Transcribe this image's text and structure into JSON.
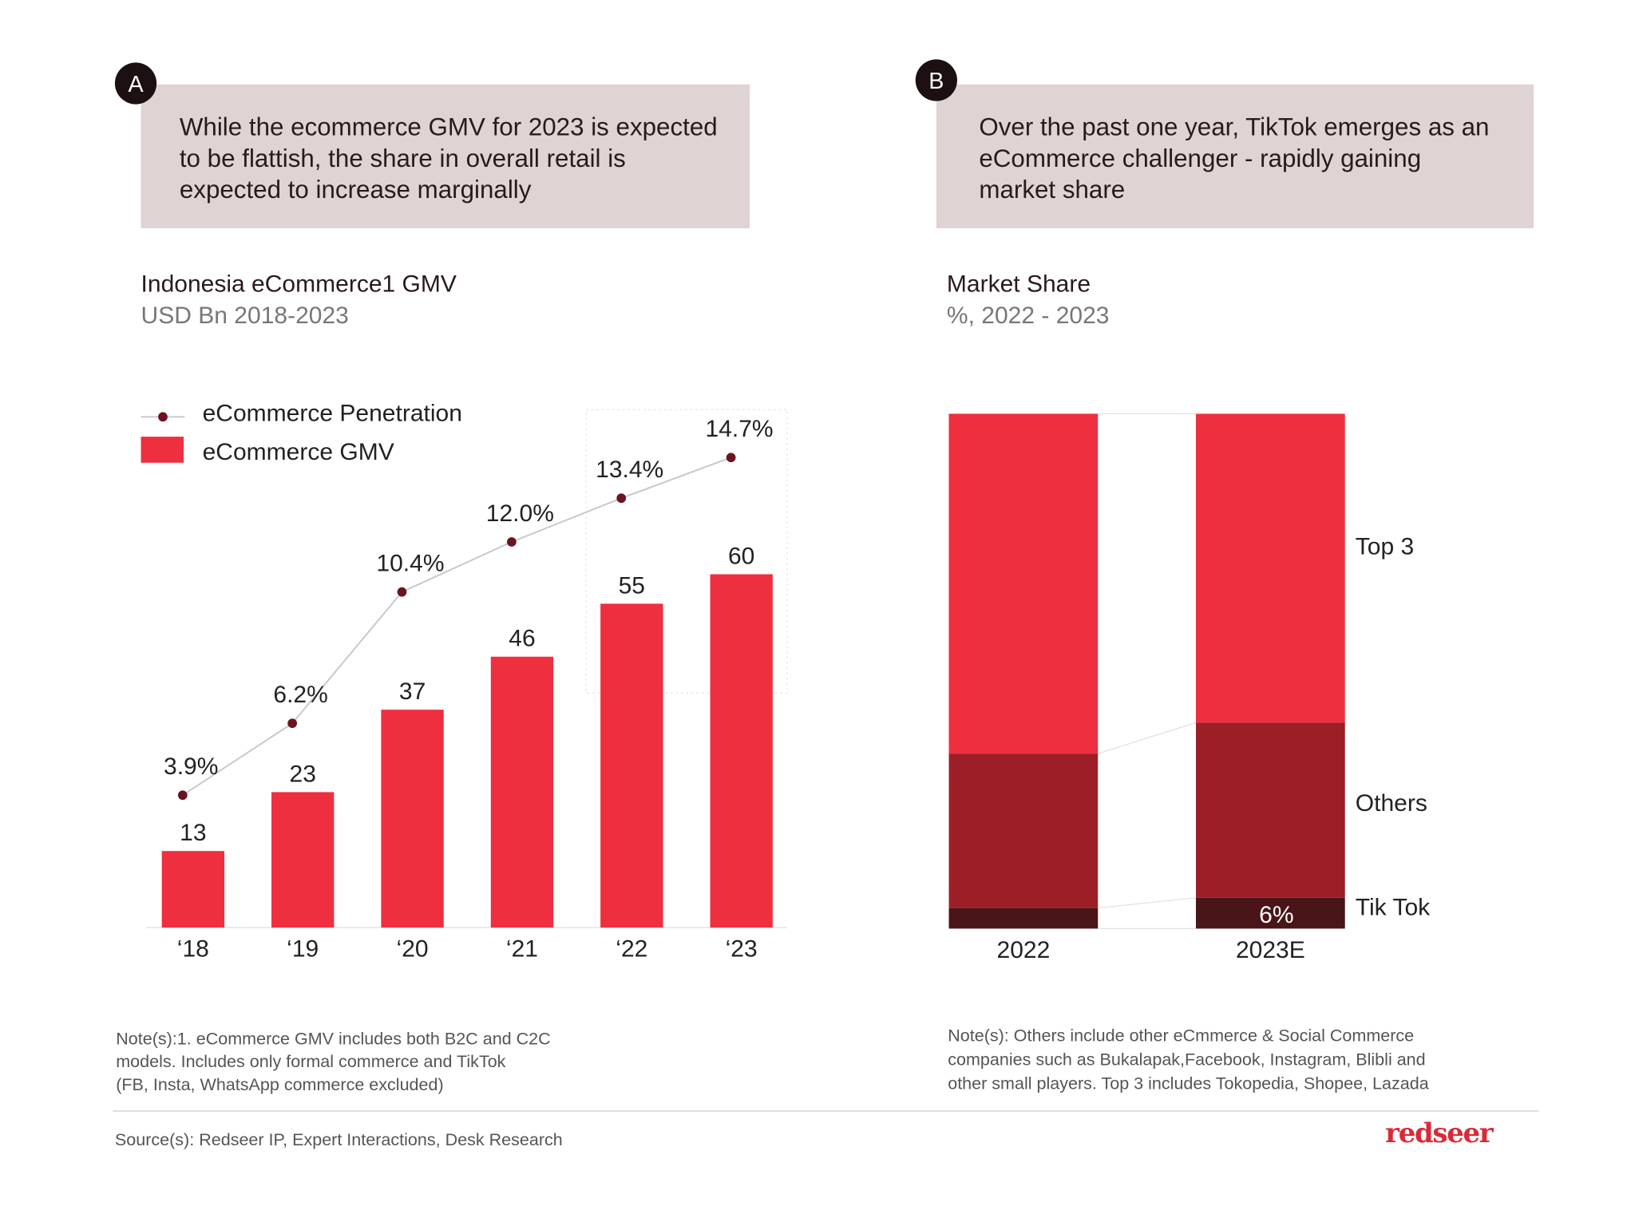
{
  "panel_a": {
    "badge": "A",
    "headline": [
      "While the ecommerce GMV for 2023 is expected",
      "to be flattish, the share in overall retail is",
      "expected to increase marginally"
    ],
    "note": [
      "Note(s):1. eCommerce GMV includes both B2C and C2C",
      "models. Includes only formal commerce and TikTok",
      "(FB, Insta, WhatsApp commerce excluded)"
    ]
  },
  "panel_b": {
    "badge": "B",
    "headline": [
      "Over the past one year, TikTok emerges as an",
      "eCommerce challenger  - rapidly gaining",
      "market share"
    ],
    "note": [
      "Note(s): Others include other eCmmerce & Social Commerce",
      "companies such as Bukalapak,Facebook, Instagram, Blibli and",
      "other small players. Top 3 includes Tokopedia, Shopee, Lazada"
    ]
  },
  "footer": {
    "source": "Source(s): Redseer IP, Expert Interactions, Desk Research",
    "logo": "redseer"
  },
  "colors": {
    "bar": "#ee2f3f",
    "others": "#9c1f28",
    "tiktok": "#4a1518",
    "line": "#c8c8c8",
    "dot": "#6b1420",
    "headline_bg": "#e0d3d4",
    "logo": "#d92a36"
  },
  "chart_data": [
    {
      "type": "bar",
      "title": "Indonesia eCommerce1 GMV",
      "subtitle": "USD Bn 2018-2023",
      "categories": [
        "'18",
        "'19",
        "'20",
        "'21",
        "'22",
        "'23"
      ],
      "category_labels": [
        "‘18",
        "‘19",
        "‘20",
        "‘21",
        "‘22",
        "‘23"
      ],
      "legend": [
        "eCommerce Penetration",
        "eCommerce GMV"
      ],
      "legend_position": "top-left",
      "grid": false,
      "series": [
        {
          "name": "eCommerce GMV",
          "type": "bar",
          "values": [
            13,
            23,
            37,
            46,
            55,
            60
          ],
          "labels": [
            "13",
            "23",
            "37",
            "46",
            "55",
            "60"
          ]
        },
        {
          "name": "eCommerce Penetration",
          "type": "line",
          "values": [
            3.9,
            6.2,
            10.4,
            12.0,
            13.4,
            14.7
          ],
          "labels": [
            "3.9%",
            "6.2%",
            "10.4%",
            "12.0%",
            "13.4%",
            "14.7%"
          ]
        }
      ]
    },
    {
      "type": "bar",
      "stacked": true,
      "title": "Market Share",
      "subtitle": "%, 2022 - 2023",
      "categories": [
        "2022",
        "2023E"
      ],
      "series": [
        {
          "name": "Tik Tok",
          "values": [
            4,
            6
          ],
          "labels": [
            "",
            "6%"
          ]
        },
        {
          "name": "Others",
          "values": [
            30,
            34
          ]
        },
        {
          "name": "Top 3",
          "values": [
            66,
            60
          ]
        }
      ]
    }
  ]
}
